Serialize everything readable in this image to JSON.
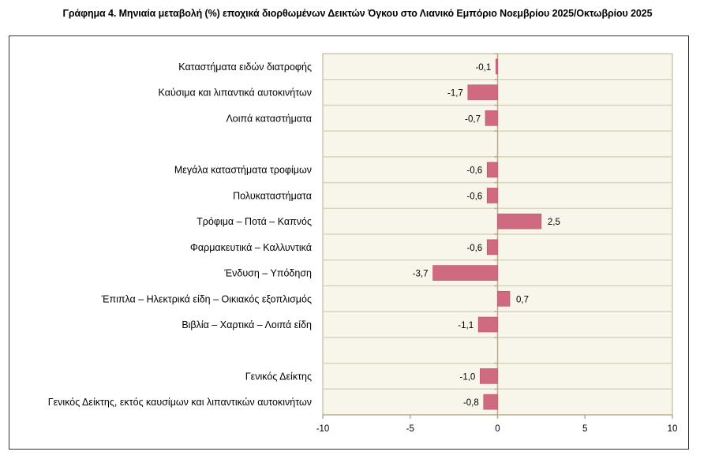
{
  "chart_data": {
    "type": "bar",
    "orientation": "horizontal",
    "title": "Γράφημα 4. Μηνιαία μεταβολή (%) εποχικά διορθωμένων Δεικτών Όγκου στο Λιανικό Εμπόριο Νοεμβρίου 2025/Οκτωβρίου 2025",
    "xlabel": "",
    "ylabel": "",
    "xlim": [
      -10,
      10
    ],
    "xticks": [
      "-10",
      "-5",
      "0",
      "5",
      "10"
    ],
    "xtick_values": [
      -10,
      -5,
      0,
      5,
      10
    ],
    "grid": true,
    "categories": [
      "Καταστήματα ειδών διατροφής",
      "Καύσιμα και λιπαντικά αυτοκινήτων",
      "Λοιπά καταστήματα",
      "",
      "Μεγάλα καταστήματα τροφίμων",
      "Πολυκαταστήματα",
      "Τρόφιμα – Ποτά – Καπνός",
      "Φαρμακευτικά – Καλλυντικά",
      "Ένδυση – Υπόδηση",
      "Έπιπλα – Ηλεκτρικά είδη – Οικιακός εξοπλισμός",
      "Βιβλία – Χαρτικά – Λοιπά είδη",
      "",
      "Γενικός Δείκτης",
      "Γενικός Δείκτης, εκτός καυσίμων και λιπαντικών αυτοκινήτων"
    ],
    "values": [
      -0.1,
      -1.7,
      -0.7,
      null,
      -0.6,
      -0.6,
      2.5,
      -0.6,
      -3.7,
      0.7,
      -1.1,
      null,
      -1.0,
      -0.8
    ],
    "data_labels": [
      "-0,1",
      "-1,7",
      "-0,7",
      "",
      "-0,6",
      "-0,6",
      "2,5",
      "-0,6",
      "-3,7",
      "0,7",
      "-1,1",
      "",
      "-1,0",
      "-0,8"
    ],
    "colors": {
      "bar": "#d06a80",
      "bar_edge": "#b85068",
      "plot_bg": "#f8f5ea",
      "grid": "#d9d3bf",
      "axis": "#b8ae8e"
    }
  }
}
